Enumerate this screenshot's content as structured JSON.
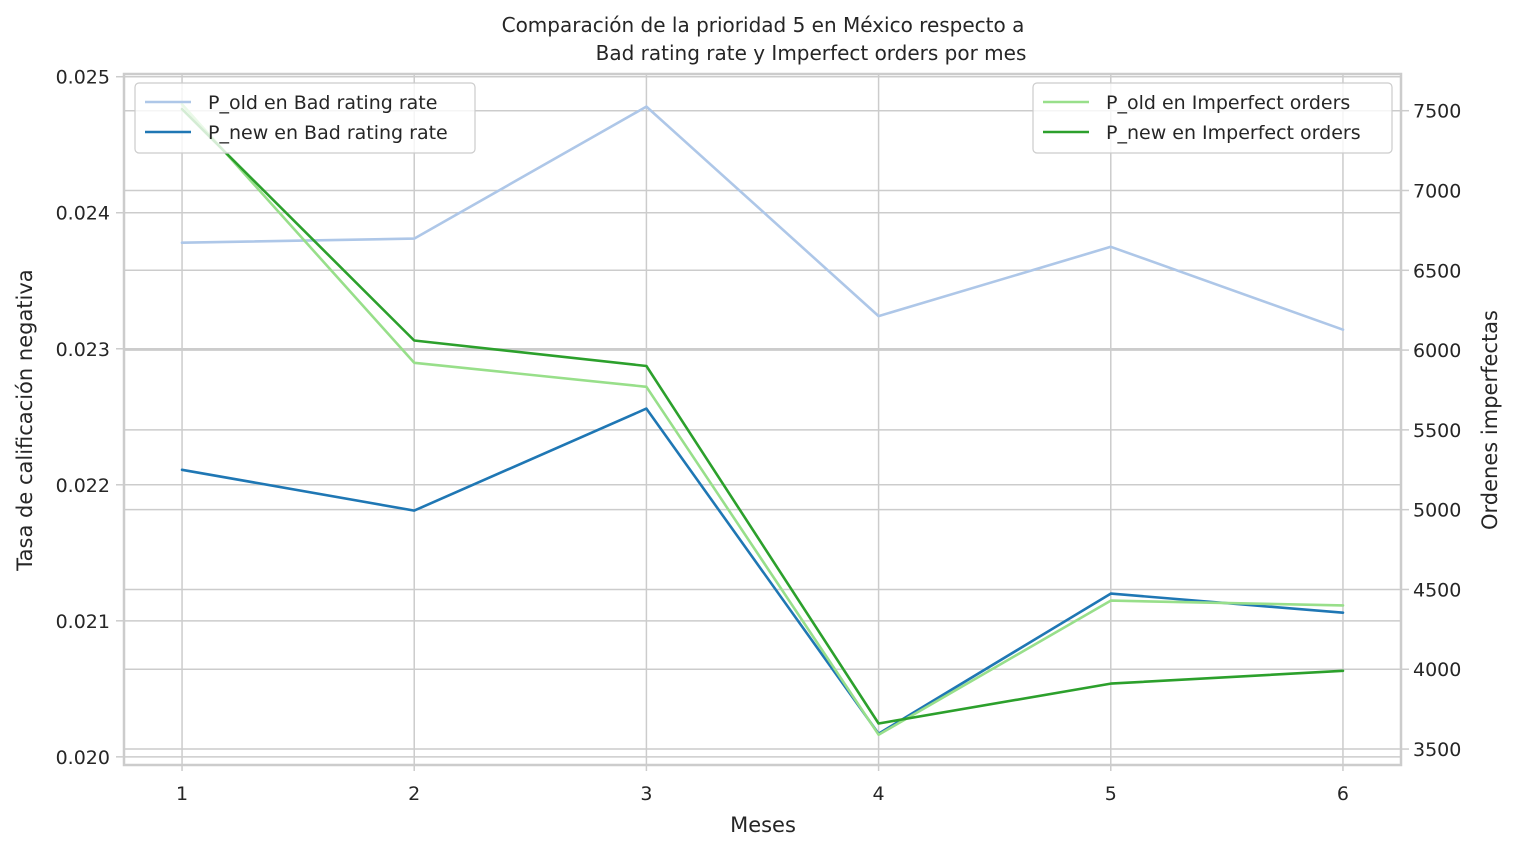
{
  "chart_data": {
    "type": "line",
    "title_line1": "Comparación de la prioridad 5 en México respecto a",
    "title_line2": "Bad rating rate y Imperfect orders por mes",
    "xlabel": "Meses",
    "ylabel_left": "Tasa de calificación negativa",
    "ylabel_right": "Ordenes imperfectas",
    "x": [
      1,
      2,
      3,
      4,
      5,
      6
    ],
    "x_tick_labels": [
      "1",
      "2",
      "3",
      "4",
      "5",
      "6"
    ],
    "xlim": [
      0.75,
      6.25
    ],
    "ylim_left": [
      0.01994,
      0.02502
    ],
    "yticks_left": [
      0.02,
      0.021,
      0.022,
      0.023,
      0.024,
      0.025
    ],
    "ytick_labels_left": [
      "0.020",
      "0.021",
      "0.022",
      "0.023",
      "0.024",
      "0.025"
    ],
    "ylim_right": [
      3400,
      7730
    ],
    "yticks_right": [
      3500,
      4000,
      4500,
      5000,
      5500,
      6000,
      6500,
      7000,
      7500
    ],
    "ytick_labels_right": [
      "3500",
      "4000",
      "4500",
      "5000",
      "5500",
      "6000",
      "6500",
      "7000",
      "7500"
    ],
    "grid": true,
    "series_left": [
      {
        "name": "P_old en Bad rating rate",
        "color": "#aec7e8",
        "values": [
          0.02378,
          0.02381,
          0.02478,
          0.02324,
          0.02375,
          0.02314
        ]
      },
      {
        "name": "P_new en Bad rating rate",
        "color": "#1f77b4",
        "values": [
          0.02211,
          0.02181,
          0.02256,
          0.02017,
          0.0212,
          0.02106
        ]
      }
    ],
    "series_right": [
      {
        "name": "P_old en Imperfect orders",
        "color": "#98df8a",
        "values": [
          7540,
          5920,
          5770,
          3590,
          4430,
          4400
        ]
      },
      {
        "name": "P_new en Imperfect orders",
        "color": "#2ca02c",
        "values": [
          7510,
          6060,
          5900,
          3660,
          3910,
          3990
        ]
      }
    ],
    "legend_left_placement": "upper-left",
    "legend_right_placement": "upper-right"
  }
}
